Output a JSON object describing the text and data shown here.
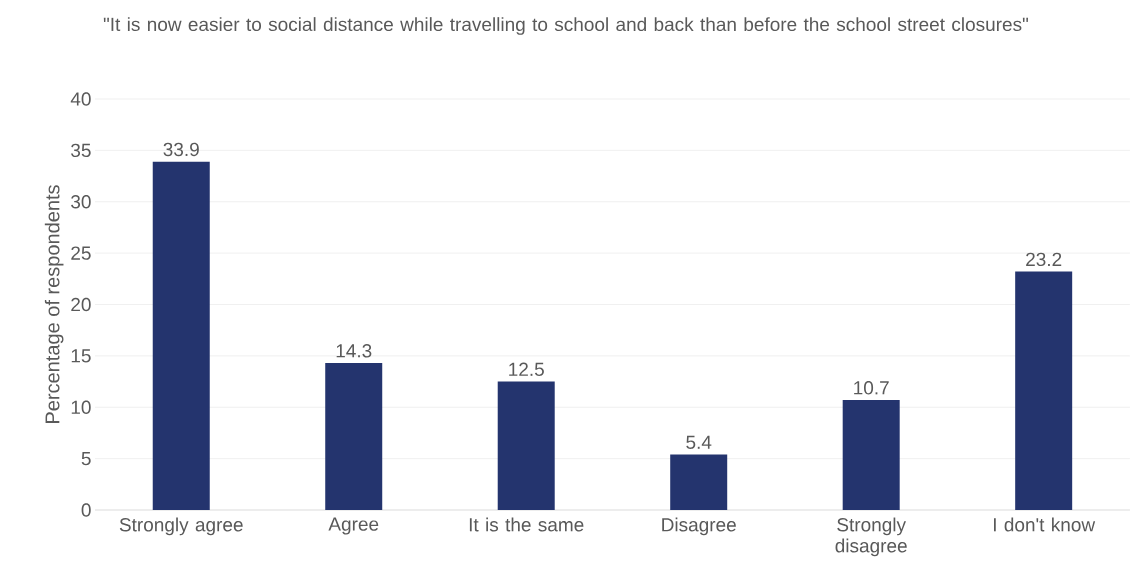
{
  "chart_data": {
    "type": "bar",
    "title": "\"It is now easier to social distance while travelling to school and back than before the school street closures\"",
    "ylabel": "Percentage of respondents",
    "categories": [
      "Strongly agree",
      "Agree",
      "It is the same",
      "Disagree",
      "Strongly disagree",
      "I don't know"
    ],
    "values": [
      33.9,
      14.3,
      12.5,
      5.4,
      10.7,
      23.2
    ],
    "color": "#24346e",
    "ylim": [
      0,
      40
    ],
    "yticks": [
      0,
      5,
      10,
      15,
      20,
      25,
      30,
      35,
      40
    ],
    "grid": "y",
    "data_labels": true
  }
}
